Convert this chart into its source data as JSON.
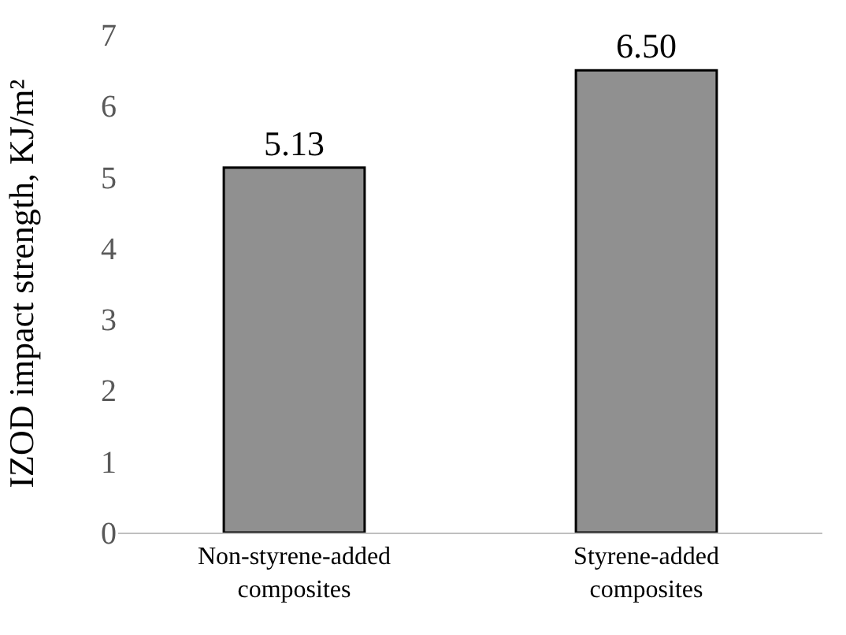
{
  "chart_data": {
    "type": "bar",
    "ylabel": "IZOD impact strength, KJ/m²",
    "categories": [
      "Non-styrene-added composites",
      "Styrene-added composites"
    ],
    "values": [
      5.13,
      6.5
    ],
    "value_labels": [
      "5.13",
      "6.50"
    ],
    "color": "#909090",
    "ylim": [
      0,
      7
    ],
    "yticks": [
      0,
      1,
      2,
      3,
      4,
      5,
      6,
      7
    ],
    "grid": false
  }
}
